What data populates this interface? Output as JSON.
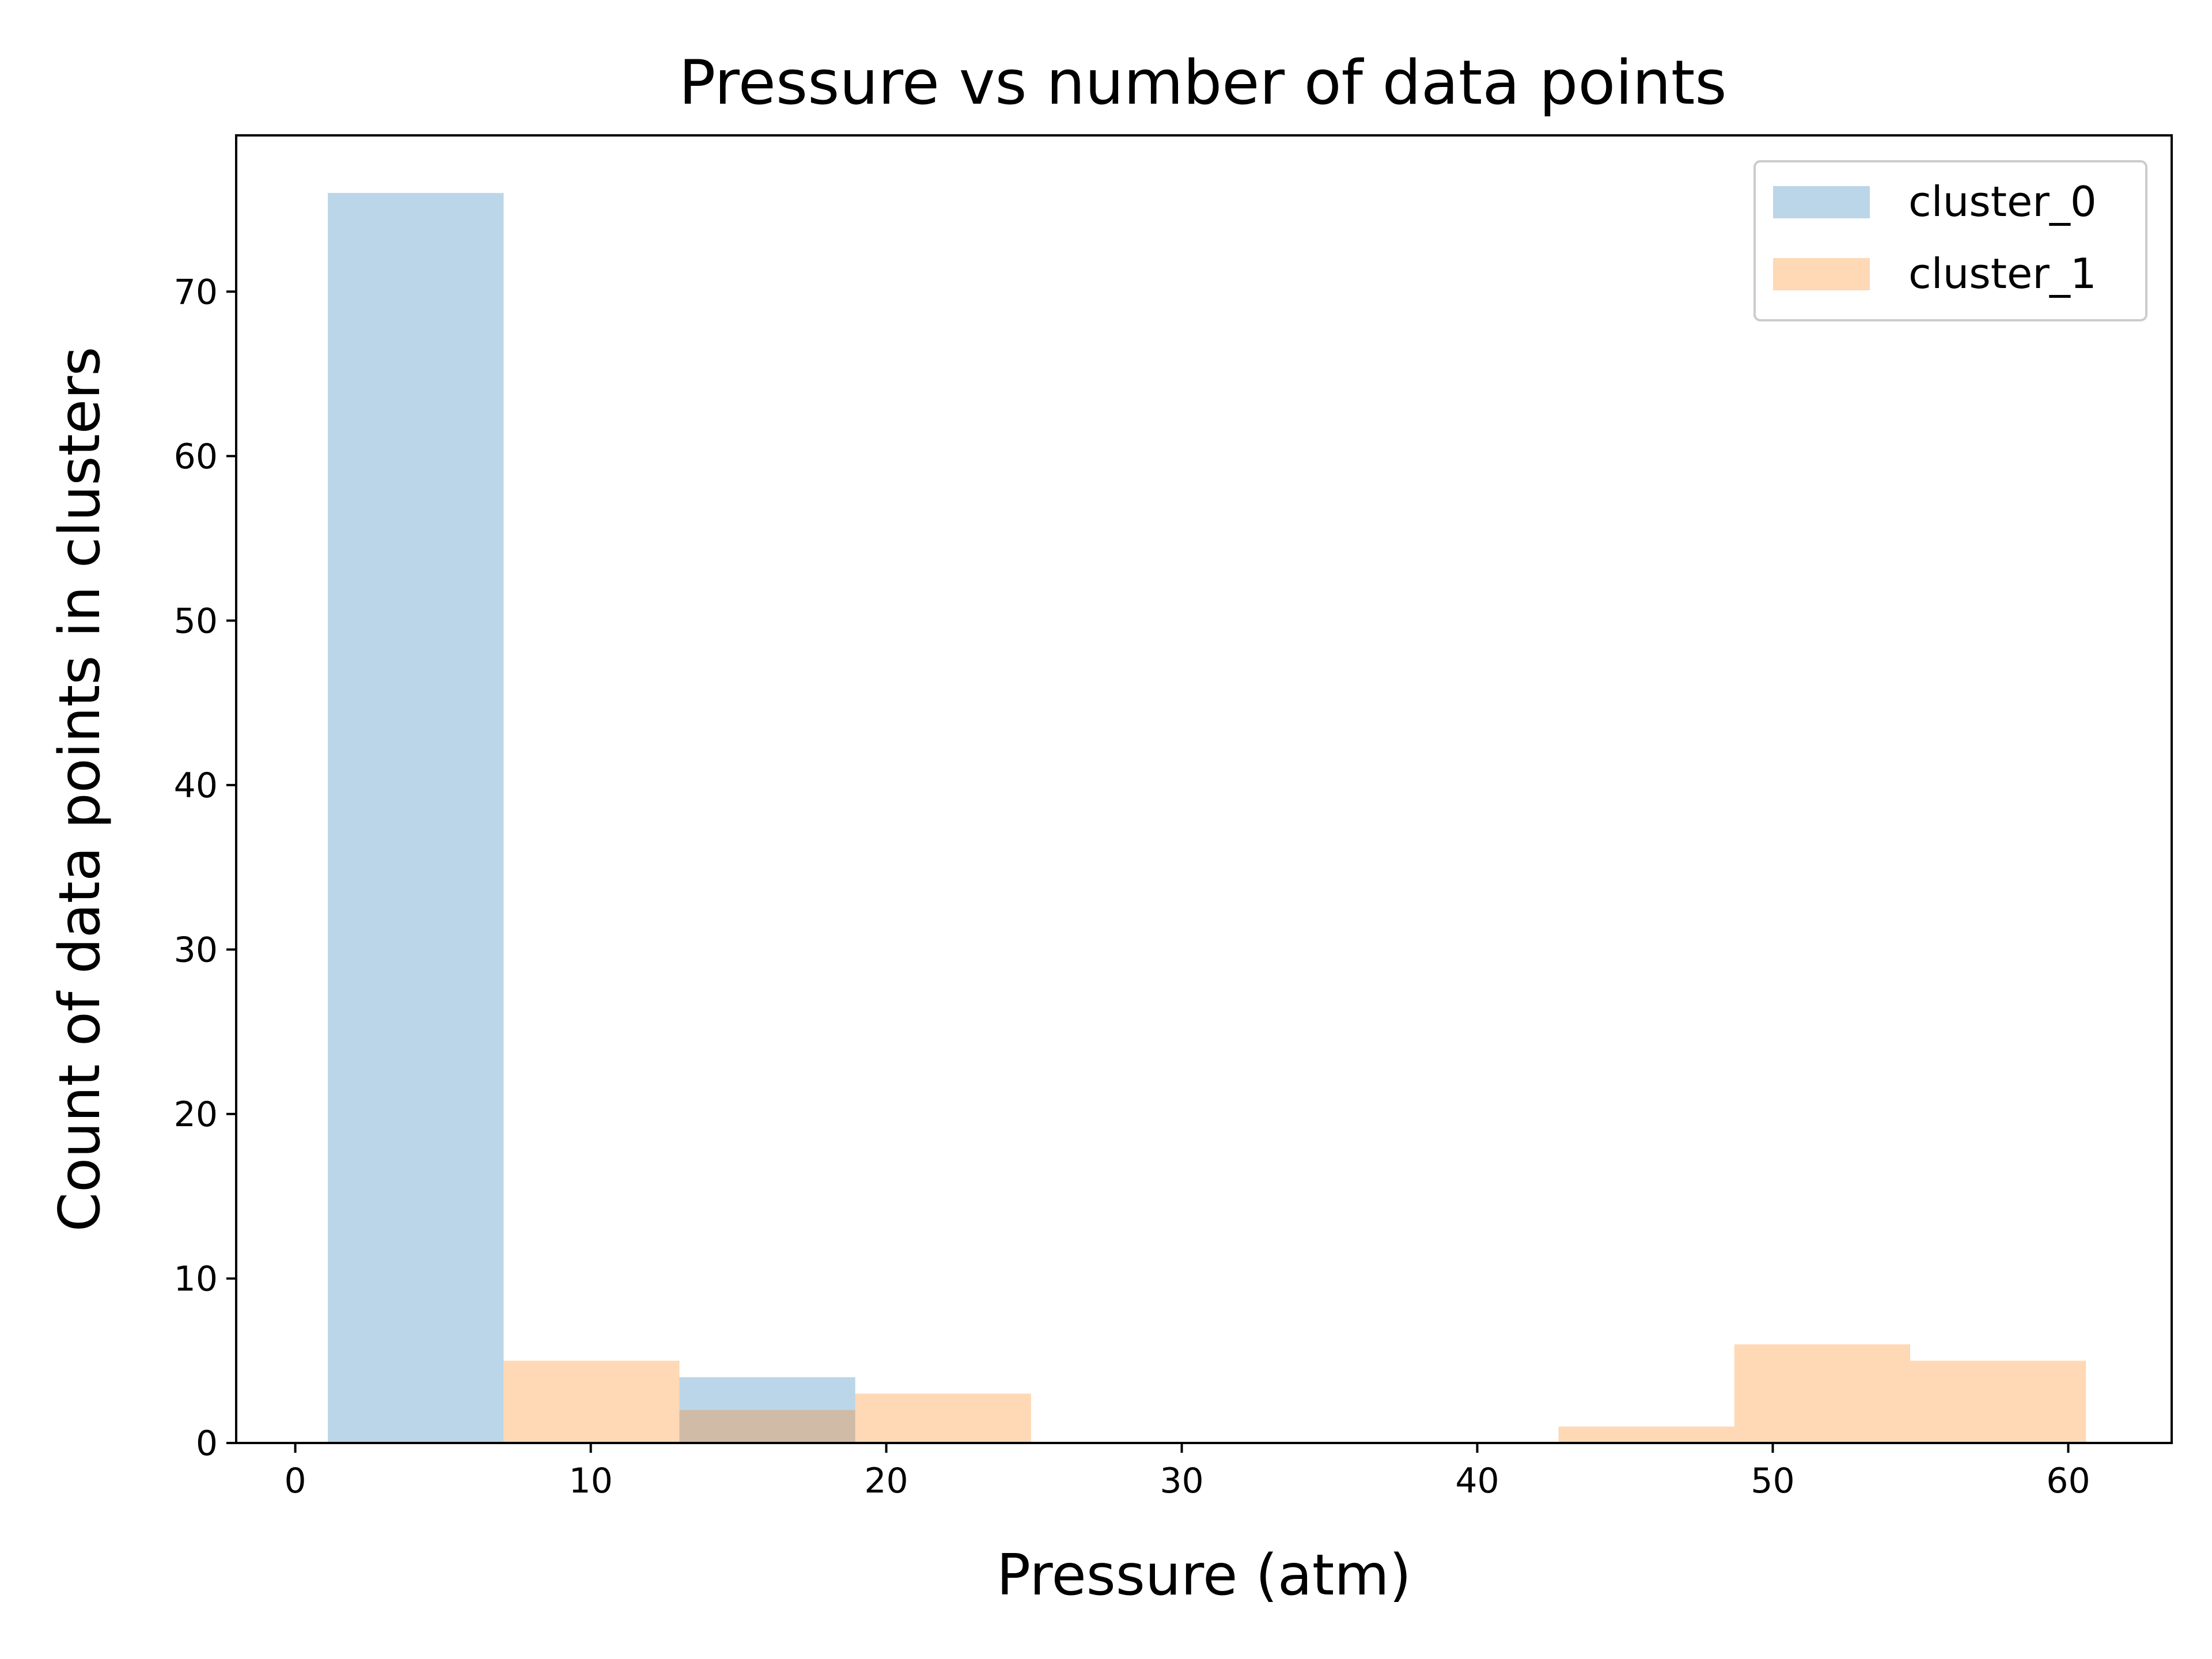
{
  "chart_data": {
    "type": "bar",
    "title": "Pressure vs number of data points",
    "xlabel": "Pressure (atm)",
    "ylabel": "Count of data points in clusters",
    "xlim": [
      -2,
      63.5
    ],
    "ylim": [
      0,
      79.5
    ],
    "xticks": [
      0,
      10,
      20,
      30,
      40,
      50,
      60
    ],
    "yticks": [
      0,
      10,
      20,
      30,
      40,
      50,
      60,
      70
    ],
    "grid": false,
    "legend_position": "top-right",
    "bar_opacity": 0.3,
    "bin_edges": [
      1.1,
      7.05,
      13.0,
      18.95,
      24.9,
      30.85,
      36.8,
      42.75,
      48.7,
      54.65,
      60.6
    ],
    "series": [
      {
        "name": "cluster_0",
        "color": "#1f77b4",
        "values": [
          76,
          0,
          4,
          0,
          0,
          0,
          0,
          0,
          0,
          0
        ]
      },
      {
        "name": "cluster_1",
        "color": "#ff7f0e",
        "values": [
          0,
          5,
          2,
          3,
          0,
          0,
          0,
          1,
          6,
          5
        ]
      }
    ]
  }
}
